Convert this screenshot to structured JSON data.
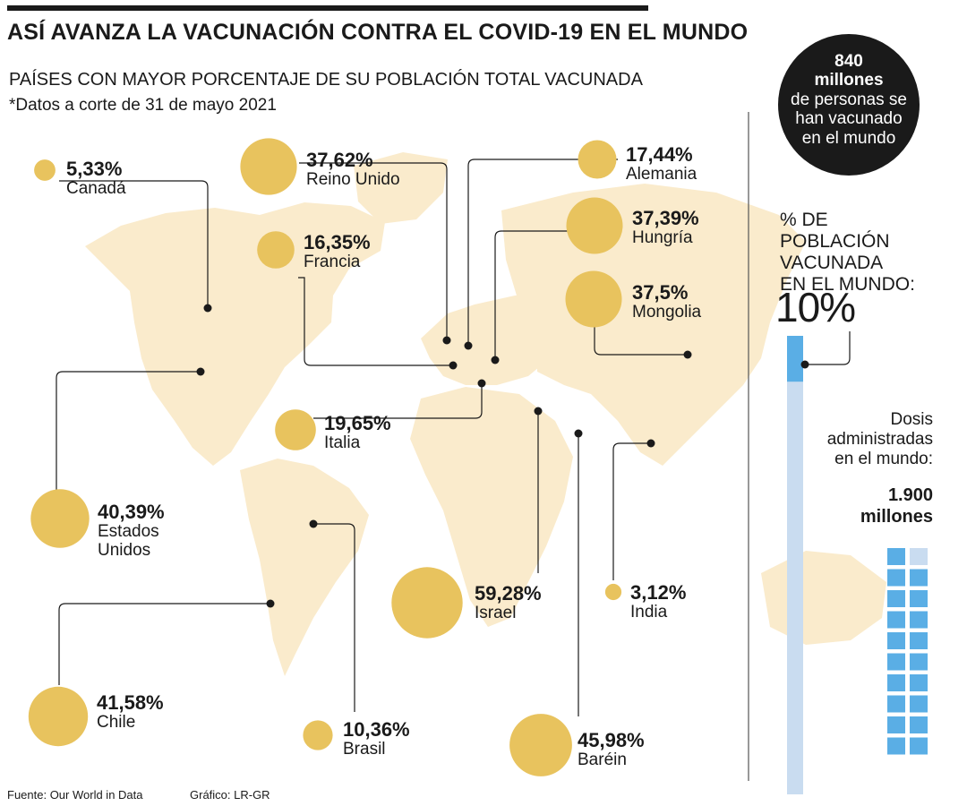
{
  "header": {
    "title": "ASÍ AVANZA LA VACUNACIÓN CONTRA EL COVID-19 EN EL MUNDO",
    "subtitle": "PAÍSES CON MAYOR PORCENTAJE DE SU POBLACIÓN TOTAL VACUNADA",
    "note": "*Datos a corte de 31 de mayo 2021"
  },
  "colors": {
    "bubble": "#e8c35e",
    "map": "#faebcc",
    "leader": "#1a1a1a",
    "bar_fill": "#5aaee5",
    "bar_track": "#c9dcf0"
  },
  "countries": [
    {
      "name": "Canadá",
      "pct": "5,33%",
      "value": 5.33
    },
    {
      "name": "Reino Unido",
      "pct": "37,62%",
      "value": 37.62
    },
    {
      "name": "Alemania",
      "pct": "17,44%",
      "value": 17.44
    },
    {
      "name": "Hungría",
      "pct": "37,39%",
      "value": 37.39
    },
    {
      "name": "Francia",
      "pct": "16,35%",
      "value": 16.35
    },
    {
      "name": "Mongolia",
      "pct": "37,5%",
      "value": 37.5
    },
    {
      "name": "Italia",
      "pct": "19,65%",
      "value": 19.65
    },
    {
      "name": "Estados Unidos",
      "name_line1": "Estados",
      "name_line2": "Unidos",
      "pct": "40,39%",
      "value": 40.39
    },
    {
      "name": "Israel",
      "pct": "59,28%",
      "value": 59.28
    },
    {
      "name": "India",
      "pct": "3,12%",
      "value": 3.12
    },
    {
      "name": "Chile",
      "pct": "41,58%",
      "value": 41.58
    },
    {
      "name": "Brasil",
      "pct": "10,36%",
      "value": 10.36
    },
    {
      "name": "Baréin",
      "pct": "45,98%",
      "value": 45.98
    }
  ],
  "global": {
    "vaccinated_number": "840",
    "vaccinated_unit": "millones",
    "vaccinated_desc_1": "de personas se",
    "vaccinated_desc_2": "han vacunado",
    "vaccinated_desc_3": "en el mundo",
    "pct_label_1": "% DE",
    "pct_label_2": "POBLACIÓN",
    "pct_label_3": "VACUNADA",
    "pct_label_4": "EN EL MUNDO:",
    "pct_value": "10%",
    "pct_fraction": 0.1,
    "doses_label_1": "Dosis",
    "doses_label_2": "administradas",
    "doses_label_3": "en el mundo:",
    "doses_value_1": "1.900",
    "doses_value_2": "millones"
  },
  "footer": {
    "source": "Fuente: Our World in Data",
    "credit": "Gráfico: LR-GR"
  }
}
